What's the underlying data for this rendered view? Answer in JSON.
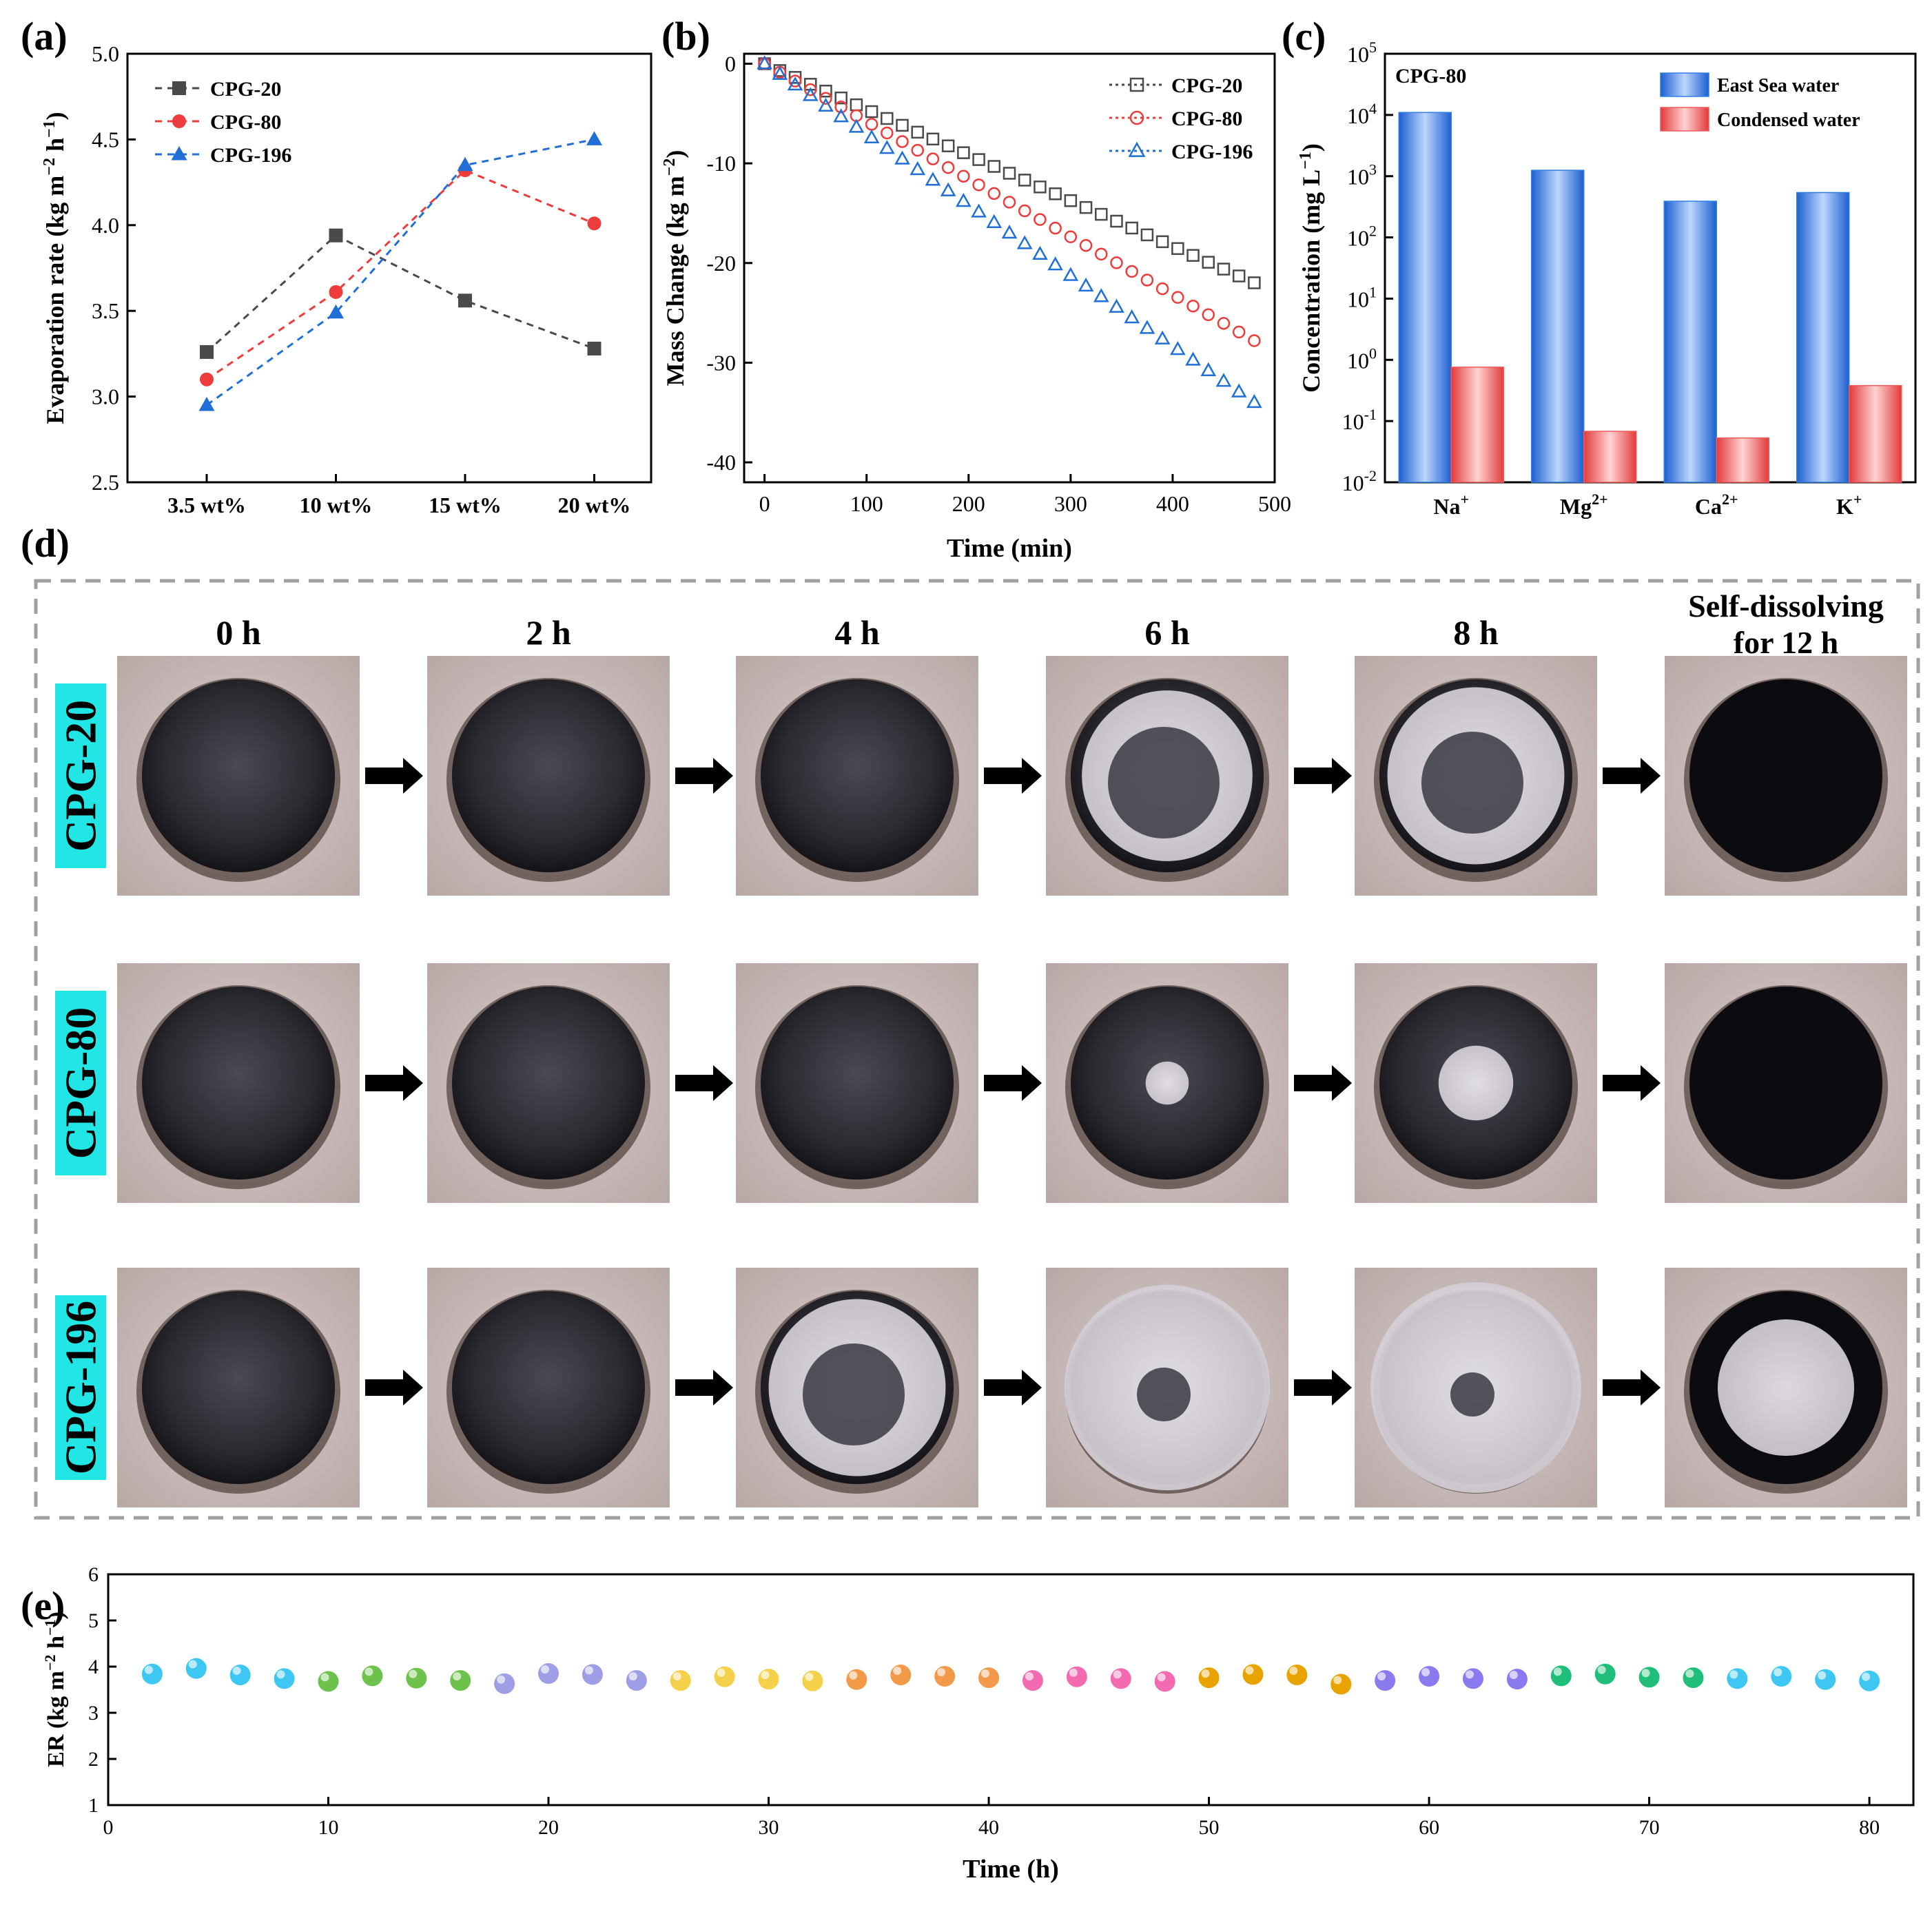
{
  "panel_labels": {
    "a": "(a)",
    "b": "(b)",
    "c": "(c)",
    "d": "(d)",
    "e": "(e)"
  },
  "colors": {
    "gray": "#4a4a4a",
    "red": "#ee3b3b",
    "blue": "#1f6fd6",
    "dash_border": "#a0a0a0",
    "sample_label_bg": "#22e5e5"
  },
  "chart_data": [
    {
      "id": "a",
      "type": "line",
      "xlabel": "",
      "ylabel": "Evaporation rate (kg m−2 h−1)",
      "categories": [
        "3.5 wt%",
        "10 wt%",
        "15 wt%",
        "20 wt%"
      ],
      "ylim": [
        2.5,
        5.0
      ],
      "yticks": [
        "2.5",
        "3.0",
        "3.5",
        "4.0",
        "4.5",
        "5.0"
      ],
      "legend_position": "top-left",
      "series": [
        {
          "name": "CPG-20",
          "color": "#4a4a4a",
          "marker": "square",
          "values": [
            3.26,
            3.94,
            3.56,
            3.28
          ]
        },
        {
          "name": "CPG-80",
          "color": "#ee3b3b",
          "marker": "circle",
          "values": [
            3.1,
            3.61,
            4.32,
            4.01
          ]
        },
        {
          "name": "CPG-196",
          "color": "#1f6fd6",
          "marker": "triangle",
          "values": [
            2.95,
            3.49,
            4.35,
            4.5
          ]
        }
      ]
    },
    {
      "id": "b",
      "type": "scatter",
      "xlabel": "Time (min)",
      "ylabel": "Mass Change (kg m−2)",
      "xlim": [
        -20,
        500
      ],
      "ylim": [
        -42,
        1
      ],
      "xticks": [
        "0",
        "100",
        "200",
        "300",
        "400",
        "500"
      ],
      "yticks": [
        "0",
        "-10",
        "-20",
        "-30",
        "-40"
      ],
      "legend_position": "top-right",
      "series": [
        {
          "name": "CPG-20",
          "color": "#4a4a4a",
          "marker": "open-square",
          "rate_per_min": -0.0458
        },
        {
          "name": "CPG-80",
          "color": "#ee3b3b",
          "marker": "open-circle",
          "rate_per_min": -0.0579
        },
        {
          "name": "CPG-196",
          "color": "#1f6fd6",
          "marker": "open-triangle",
          "rate_per_min": -0.0708
        }
      ],
      "x_step_min": 15,
      "x_max_min": 480
    },
    {
      "id": "c",
      "type": "bar",
      "xlabel": "",
      "ylabel": "Concentration (mg L−1)",
      "log_scale": true,
      "ylim": [
        0.01,
        100000
      ],
      "ytick_exponents": [
        "-2",
        "-1",
        "0",
        "1",
        "2",
        "3",
        "4",
        "5"
      ],
      "inset_label": "CPG-80",
      "legend_position": "top-right",
      "categories": [
        {
          "base": "Na",
          "sup": "+"
        },
        {
          "base": "Mg",
          "sup": "2+"
        },
        {
          "base": "Ca",
          "sup": "2+"
        },
        {
          "base": "K",
          "sup": "+"
        }
      ],
      "series": [
        {
          "name": "East Sea water",
          "color": "#2f7fe6",
          "values": [
            11000,
            1250,
            390,
            540
          ]
        },
        {
          "name": "Condensed water",
          "color": "#f05a5a",
          "values": [
            0.76,
            0.068,
            0.053,
            0.38
          ]
        }
      ]
    },
    {
      "id": "e",
      "type": "scatter",
      "xlabel": "Time (h)",
      "ylabel": "ER (kg m−2 h−1)",
      "xlim": [
        0,
        82
      ],
      "ylim": [
        1,
        6
      ],
      "xticks": [
        "0",
        "10",
        "20",
        "30",
        "40",
        "50",
        "60",
        "70",
        "80"
      ],
      "yticks": [
        "1",
        "2",
        "3",
        "4",
        "5",
        "6"
      ],
      "x": [
        2,
        4,
        6,
        8,
        10,
        12,
        14,
        16,
        18,
        20,
        22,
        24,
        26,
        28,
        30,
        32,
        34,
        36,
        38,
        40,
        42,
        44,
        46,
        48,
        50,
        52,
        54,
        56,
        58,
        60,
        62,
        64,
        66,
        68,
        70,
        72,
        74,
        76,
        78,
        80
      ],
      "values": [
        3.84,
        3.96,
        3.82,
        3.74,
        3.68,
        3.8,
        3.75,
        3.7,
        3.63,
        3.85,
        3.83,
        3.7,
        3.7,
        3.78,
        3.73,
        3.69,
        3.72,
        3.82,
        3.79,
        3.76,
        3.7,
        3.78,
        3.74,
        3.68,
        3.76,
        3.83,
        3.82,
        3.62,
        3.7,
        3.79,
        3.74,
        3.73,
        3.8,
        3.84,
        3.77,
        3.76,
        3.74,
        3.79,
        3.72,
        3.69
      ],
      "point_colors": [
        "#3ec7f2",
        "#3ec7f2",
        "#3ec7f2",
        "#3ec7f2",
        "#6cc24a",
        "#6cc24a",
        "#6cc24a",
        "#6cc24a",
        "#9e9ee6",
        "#9e9ee6",
        "#9e9ee6",
        "#9e9ee6",
        "#f5d04a",
        "#f5d04a",
        "#f5d04a",
        "#f5d04a",
        "#f29a4a",
        "#f29a4a",
        "#f29a4a",
        "#f29a4a",
        "#f26ab0",
        "#f26ab0",
        "#f26ab0",
        "#f26ab0",
        "#e8a300",
        "#e8a300",
        "#e8a300",
        "#e8a300",
        "#8a7af0",
        "#8a7af0",
        "#8a7af0",
        "#8a7af0",
        "#1fbf7a",
        "#1fbf7a",
        "#1fbf7a",
        "#1fbf7a",
        "#3ec7f2",
        "#3ec7f2",
        "#3ec7f2",
        "#3ec7f2"
      ]
    }
  ],
  "photo_grid": {
    "time_labels": [
      "0 h",
      "2 h",
      "4 h",
      "6 h",
      "8 h",
      "Self-dissolving",
      "for 12 h"
    ],
    "samples": [
      "CPG-20",
      "CPG-80",
      "CPG-196"
    ],
    "salt_coverage": [
      [
        0,
        0,
        0,
        0.55,
        0.6,
        0
      ],
      [
        0,
        0,
        0,
        0.05,
        0.15,
        0
      ],
      [
        0,
        0,
        0.6,
        0.85,
        0.9,
        0.5
      ]
    ]
  }
}
